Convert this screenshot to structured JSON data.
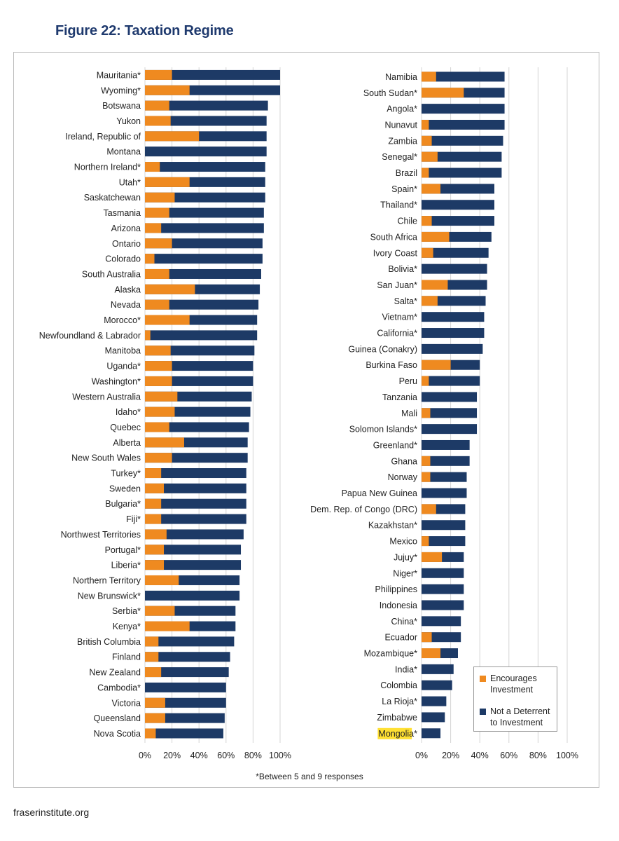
{
  "figure_title": "Figure 22: Taxation Regime",
  "footnote": "*Between 5 and 9 responses",
  "source": "fraserinstitute.org",
  "colors": {
    "encourages": "#ef8a20",
    "not_deterrent": "#1d3a66",
    "grid": "#d4d4d4",
    "highlight": "#ffe033"
  },
  "legend": {
    "encourages": "Encourages Investment",
    "not_deterrent": "Not a Deterrent to Investment"
  },
  "chart_data": [
    {
      "type": "bar",
      "orientation": "horizontal",
      "stacked": true,
      "title": "",
      "xlim": [
        0,
        100
      ],
      "x_ticks": [
        "0%",
        "20%",
        "40%",
        "60%",
        "80%",
        "100%"
      ],
      "series": [
        {
          "name": "Encourages Investment"
        },
        {
          "name": "Not a Deterrent to Investment"
        }
      ],
      "items": [
        {
          "label": "Mauritania*",
          "enc": 20,
          "total": 100
        },
        {
          "label": "Wyoming*",
          "enc": 33,
          "total": 100
        },
        {
          "label": "Botswana",
          "enc": 18,
          "total": 91
        },
        {
          "label": "Yukon",
          "enc": 19,
          "total": 90
        },
        {
          "label": "Ireland, Republic of",
          "enc": 40,
          "total": 90
        },
        {
          "label": "Montana",
          "enc": 0,
          "total": 90
        },
        {
          "label": "Northern Ireland*",
          "enc": 11,
          "total": 89
        },
        {
          "label": "Utah*",
          "enc": 33,
          "total": 89
        },
        {
          "label": "Saskatchewan",
          "enc": 22,
          "total": 89
        },
        {
          "label": "Tasmania",
          "enc": 18,
          "total": 88
        },
        {
          "label": "Arizona",
          "enc": 12,
          "total": 88
        },
        {
          "label": "Ontario",
          "enc": 20,
          "total": 87
        },
        {
          "label": "Colorado",
          "enc": 7,
          "total": 87
        },
        {
          "label": "South Australia",
          "enc": 18,
          "total": 86
        },
        {
          "label": "Alaska",
          "enc": 37,
          "total": 85
        },
        {
          "label": "Nevada",
          "enc": 18,
          "total": 84
        },
        {
          "label": "Morocco*",
          "enc": 33,
          "total": 83
        },
        {
          "label": "Newfoundland & Labrador",
          "enc": 4,
          "total": 83
        },
        {
          "label": "Manitoba",
          "enc": 19,
          "total": 81
        },
        {
          "label": "Uganda*",
          "enc": 20,
          "total": 80
        },
        {
          "label": "Washington*",
          "enc": 20,
          "total": 80
        },
        {
          "label": "Western Australia",
          "enc": 24,
          "total": 79
        },
        {
          "label": "Idaho*",
          "enc": 22,
          "total": 78
        },
        {
          "label": "Quebec",
          "enc": 18,
          "total": 77
        },
        {
          "label": "Alberta",
          "enc": 29,
          "total": 76
        },
        {
          "label": "New South Wales",
          "enc": 20,
          "total": 76
        },
        {
          "label": "Turkey*",
          "enc": 12,
          "total": 75
        },
        {
          "label": "Sweden",
          "enc": 14,
          "total": 75
        },
        {
          "label": "Bulgaria*",
          "enc": 12,
          "total": 75
        },
        {
          "label": "Fiji*",
          "enc": 12,
          "total": 75
        },
        {
          "label": "Northwest Territories",
          "enc": 16,
          "total": 73
        },
        {
          "label": "Portugal*",
          "enc": 14,
          "total": 71
        },
        {
          "label": "Liberia*",
          "enc": 14,
          "total": 71
        },
        {
          "label": "Northern Territory",
          "enc": 25,
          "total": 70
        },
        {
          "label": "New Brunswick*",
          "enc": 0,
          "total": 70
        },
        {
          "label": "Serbia*",
          "enc": 22,
          "total": 67
        },
        {
          "label": "Kenya*",
          "enc": 33,
          "total": 67
        },
        {
          "label": "British Columbia",
          "enc": 10,
          "total": 66
        },
        {
          "label": "Finland",
          "enc": 10,
          "total": 63
        },
        {
          "label": "New Zealand",
          "enc": 12,
          "total": 62
        },
        {
          "label": "Cambodia*",
          "enc": 0,
          "total": 60
        },
        {
          "label": "Victoria",
          "enc": 15,
          "total": 60
        },
        {
          "label": "Queensland",
          "enc": 15,
          "total": 59
        },
        {
          "label": "Nova Scotia",
          "enc": 8,
          "total": 58
        }
      ]
    },
    {
      "type": "bar",
      "orientation": "horizontal",
      "stacked": true,
      "title": "",
      "xlim": [
        0,
        100
      ],
      "x_ticks": [
        "0%",
        "20%",
        "40%",
        "60%",
        "80%",
        "100%"
      ],
      "series": [
        {
          "name": "Encourages Investment"
        },
        {
          "name": "Not a Deterrent to Investment"
        }
      ],
      "items": [
        {
          "label": "Namibia",
          "enc": 10,
          "total": 57
        },
        {
          "label": "South Sudan*",
          "enc": 29,
          "total": 57
        },
        {
          "label": "Angola*",
          "enc": 0,
          "total": 57
        },
        {
          "label": "Nunavut",
          "enc": 5,
          "total": 57
        },
        {
          "label": "Zambia",
          "enc": 7,
          "total": 56
        },
        {
          "label": "Senegal*",
          "enc": 11,
          "total": 55
        },
        {
          "label": "Brazil",
          "enc": 5,
          "total": 55
        },
        {
          "label": "Spain*",
          "enc": 13,
          "total": 50
        },
        {
          "label": "Thailand*",
          "enc": 0,
          "total": 50
        },
        {
          "label": "Chile",
          "enc": 7,
          "total": 50
        },
        {
          "label": "South Africa",
          "enc": 19,
          "total": 48
        },
        {
          "label": "Ivory Coast",
          "enc": 8,
          "total": 46
        },
        {
          "label": "Bolivia*",
          "enc": 0,
          "total": 45
        },
        {
          "label": "San Juan*",
          "enc": 18,
          "total": 45
        },
        {
          "label": "Salta*",
          "enc": 11,
          "total": 44
        },
        {
          "label": "Vietnam*",
          "enc": 0,
          "total": 43
        },
        {
          "label": "California*",
          "enc": 0,
          "total": 43
        },
        {
          "label": "Guinea (Conakry)",
          "enc": 0,
          "total": 42
        },
        {
          "label": "Burkina Faso",
          "enc": 20,
          "total": 40
        },
        {
          "label": "Peru",
          "enc": 5,
          "total": 40
        },
        {
          "label": "Tanzania",
          "enc": 0,
          "total": 38
        },
        {
          "label": "Mali",
          "enc": 6,
          "total": 38
        },
        {
          "label": "Solomon Islands*",
          "enc": 0,
          "total": 38
        },
        {
          "label": "Greenland*",
          "enc": 0,
          "total": 33
        },
        {
          "label": "Ghana",
          "enc": 6,
          "total": 33
        },
        {
          "label": "Norway",
          "enc": 6,
          "total": 31
        },
        {
          "label": "Papua New Guinea",
          "enc": 0,
          "total": 31
        },
        {
          "label": "Dem. Rep. of Congo (DRC)",
          "enc": 10,
          "total": 30
        },
        {
          "label": "Kazakhstan*",
          "enc": 0,
          "total": 30
        },
        {
          "label": "Mexico",
          "enc": 5,
          "total": 30
        },
        {
          "label": "Jujuy*",
          "enc": 14,
          "total": 29
        },
        {
          "label": "Niger*",
          "enc": 0,
          "total": 29
        },
        {
          "label": "Philippines",
          "enc": 0,
          "total": 29
        },
        {
          "label": "Indonesia",
          "enc": 0,
          "total": 29
        },
        {
          "label": "China*",
          "enc": 0,
          "total": 27
        },
        {
          "label": "Ecuador",
          "enc": 7,
          "total": 27
        },
        {
          "label": "Mozambique*",
          "enc": 13,
          "total": 25
        },
        {
          "label": "India*",
          "enc": 0,
          "total": 22
        },
        {
          "label": "Colombia",
          "enc": 0,
          "total": 21
        },
        {
          "label": "La Rioja*",
          "enc": 0,
          "total": 17
        },
        {
          "label": "Zimbabwe",
          "enc": 0,
          "total": 16
        },
        {
          "label": "Mongolia*",
          "enc": 0,
          "total": 13,
          "highlight": true
        }
      ]
    }
  ]
}
